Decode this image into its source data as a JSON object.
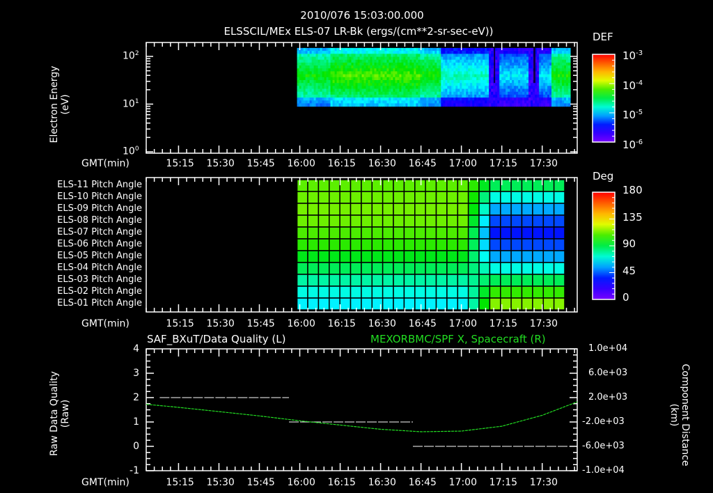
{
  "header": {
    "timestamp": "2010/076 15:03:00.000",
    "title": "ELSSCIL/MEx ELS-07 LR-Bk  (ergs/(cm**2-sr-sec-eV))"
  },
  "chart_data": [
    {
      "type": "heatmap",
      "panel": "energy-spectrogram",
      "title": "ELSSCIL/MEx ELS-07 LR-Bk  (ergs/(cm**2-sr-sec-eV))",
      "xlabel": "GMT(min)",
      "ylabel": "Electron Energy (eV)",
      "yscale": "log",
      "ylim": [
        1,
        200
      ],
      "yticks": [
        "10^0",
        "10^1",
        "10^2"
      ],
      "xticks": [
        "15:15",
        "15:30",
        "15:45",
        "16:00",
        "16:15",
        "16:30",
        "16:45",
        "17:00",
        "17:15",
        "17:30"
      ],
      "xrange": [
        "15:03",
        "17:43"
      ],
      "data_start": "15:59",
      "data_end": "17:43",
      "energy_band_eV": [
        9,
        150
      ],
      "colorbar": {
        "label": "DEF",
        "scale": "log",
        "range": [
          1e-06,
          0.001
        ],
        "ticks": [
          "10^-3",
          "10^-4",
          "10^-5",
          "10^-6"
        ]
      },
      "description": "Green/yellow (~1e-4) fluxes 16:00-16:45, weakening to cyan/blue after 16:45; deep-blue/violet dropouts near 17:15 and 17:27; green recovery near 17:40"
    },
    {
      "type": "heatmap",
      "panel": "pitch-angle",
      "xlabel": "GMT(min)",
      "rows": [
        "ELS-11 Pitch Angle",
        "ELS-10 Pitch Angle",
        "ELS-09 Pitch Angle",
        "ELS-08 Pitch Angle",
        "ELS-07 Pitch Angle",
        "ELS-06 Pitch Angle",
        "ELS-05 Pitch Angle",
        "ELS-04 Pitch Angle",
        "ELS-03 Pitch Angle",
        "ELS-02 Pitch Angle",
        "ELS-01 Pitch Angle"
      ],
      "xticks": [
        "15:15",
        "15:30",
        "15:45",
        "16:00",
        "16:15",
        "16:30",
        "16:45",
        "17:00",
        "17:15",
        "17:30"
      ],
      "colorbar": {
        "label": "Deg",
        "range": [
          0,
          180
        ],
        "ticks": [
          "180",
          "135",
          "90",
          "45",
          "0"
        ]
      },
      "early_values_deg": [
        110,
        112,
        113,
        112,
        108,
        104,
        96,
        88,
        78,
        70,
        65
      ],
      "late_values_deg": [
        88,
        70,
        55,
        42,
        35,
        42,
        55,
        70,
        88,
        105,
        115
      ],
      "transition": "17:05-17:15"
    },
    {
      "type": "line",
      "panel": "data-quality-and-position",
      "title_left": "SAF_BXuT/Data Quality (L)",
      "title_right": "MEXORBMC/SPF X, Spacecraft (R)",
      "xlabel": "GMT(min)",
      "ylabel_left": "Raw Data Quality (Raw)",
      "ylabel_right": "Component Distance (km)",
      "ylim_left": [
        -1,
        4
      ],
      "yticks_left": [
        "4",
        "3",
        "2",
        "1",
        "0",
        "-1"
      ],
      "ylim_right": [
        -10000,
        10000
      ],
      "yticks_right": [
        "1.0e+04",
        "6.0e+03",
        "2.0e+03",
        "-2.0e+03",
        "-6.0e+03",
        "-1.0e+04"
      ],
      "xticks": [
        "15:15",
        "15:30",
        "15:45",
        "16:00",
        "16:15",
        "16:30",
        "16:45",
        "17:00",
        "17:15",
        "17:30"
      ],
      "series": [
        {
          "name": "Data Quality",
          "color": "#ffffff",
          "segments": [
            {
              "x": [
                "15:08",
                "15:56"
              ],
              "y": 2
            },
            {
              "x": [
                "15:56",
                "16:42"
              ],
              "y": 1
            },
            {
              "x": [
                "16:42",
                "17:40"
              ],
              "y": 0
            }
          ]
        },
        {
          "name": "SPF X Spacecraft",
          "color": "#22dd22",
          "x": [
            "15:03",
            "15:15",
            "15:30",
            "15:45",
            "16:00",
            "16:15",
            "16:30",
            "16:45",
            "17:00",
            "17:15",
            "17:30",
            "17:43"
          ],
          "values_km": [
            900,
            400,
            -300,
            -1000,
            -1800,
            -2500,
            -3200,
            -3600,
            -3500,
            -2700,
            -900,
            1300
          ]
        }
      ]
    }
  ],
  "panel1": {
    "ylabel": "Electron Energy",
    "yunit": "(eV)",
    "yticks": [
      {
        "base": "10",
        "exp": "2"
      },
      {
        "base": "10",
        "exp": "1"
      },
      {
        "base": "10",
        "exp": "0"
      }
    ],
    "cb_label": "DEF",
    "cb_ticks": [
      {
        "base": "10",
        "exp": "-3"
      },
      {
        "base": "10",
        "exp": "-4"
      },
      {
        "base": "10",
        "exp": "-5"
      },
      {
        "base": "10",
        "exp": "-6"
      }
    ]
  },
  "panel2": {
    "rows": [
      "ELS-11 Pitch Angle",
      "ELS-10 Pitch Angle",
      "ELS-09 Pitch Angle",
      "ELS-08 Pitch Angle",
      "ELS-07 Pitch Angle",
      "ELS-06 Pitch Angle",
      "ELS-05 Pitch Angle",
      "ELS-04 Pitch Angle",
      "ELS-03 Pitch Angle",
      "ELS-02 Pitch Angle",
      "ELS-01 Pitch Angle"
    ],
    "cb_label": "Deg",
    "cb_ticks": [
      "180",
      "135",
      "90",
      "45",
      "0"
    ]
  },
  "panel3": {
    "title_left": "SAF_BXuT/Data Quality (L)",
    "title_right": "MEXORBMC/SPF X, Spacecraft (R)",
    "ylabel_left": "Raw Data Quality",
    "yunit_left": "(Raw)",
    "ylabel_right": "Component Distance",
    "yunit_right": "(km)",
    "yticks_left": [
      "4",
      "3",
      "2",
      "1",
      "0",
      "-1"
    ],
    "yticks_right": [
      "1.0e+04",
      "6.0e+03",
      "2.0e+03",
      "-2.0e+03",
      "-6.0e+03",
      "-1.0e+04"
    ]
  },
  "xaxis": {
    "label": "GMT(min)",
    "ticks": [
      "15:15",
      "15:30",
      "15:45",
      "16:00",
      "16:15",
      "16:30",
      "16:45",
      "17:00",
      "17:15",
      "17:30"
    ]
  },
  "colors": {
    "background": "#000000",
    "axes": "#ffffff",
    "right_series": "#22dd22"
  }
}
